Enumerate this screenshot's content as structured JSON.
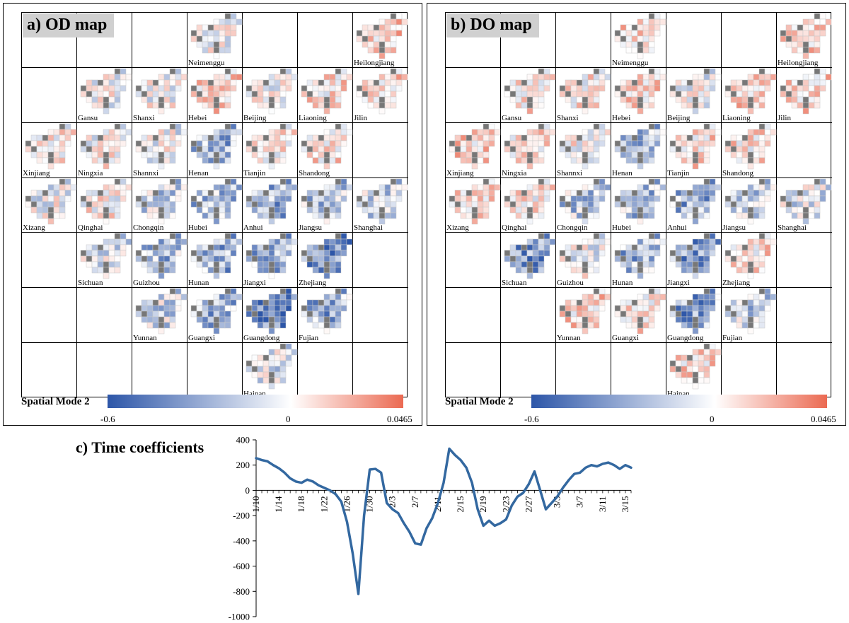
{
  "panels": [
    {
      "title": "a) OD map",
      "colorbar_label": "Spatial Mode 2"
    },
    {
      "title": "b) DO map",
      "colorbar_label": "Spatial Mode 2"
    }
  ],
  "colorbar": {
    "ticks": [
      "-0.6",
      "0",
      "0.0465"
    ],
    "min": -0.6,
    "max": 0.0465,
    "colors": {
      "negative": "#2d56a8",
      "zero": "#ffffff",
      "positive": "#eb6a52",
      "missing": "#777777"
    }
  },
  "provinces": [
    {
      "name": "Neimenggu",
      "row": 0,
      "col": 3,
      "od_bias": 0.1,
      "do_bias": 0.35
    },
    {
      "name": "Heilongjiang",
      "row": 0,
      "col": 6,
      "od_bias": 0.45,
      "do_bias": 0.45
    },
    {
      "name": "Gansu",
      "row": 1,
      "col": 1,
      "od_bias": 0.05,
      "do_bias": 0.25
    },
    {
      "name": "Shanxi",
      "row": 1,
      "col": 2,
      "od_bias": 0.05,
      "do_bias": 0.2
    },
    {
      "name": "Hebei",
      "row": 1,
      "col": 3,
      "od_bias": 0.35,
      "do_bias": 0.35
    },
    {
      "name": "Beijing",
      "row": 1,
      "col": 4,
      "od_bias": 0.1,
      "do_bias": 0.0
    },
    {
      "name": "Liaoning",
      "row": 1,
      "col": 5,
      "od_bias": 0.3,
      "do_bias": 0.4
    },
    {
      "name": "Jilin",
      "row": 1,
      "col": 6,
      "od_bias": 0.35,
      "do_bias": 0.35
    },
    {
      "name": "Xinjiang",
      "row": 2,
      "col": 0,
      "od_bias": 0.15,
      "do_bias": 0.4
    },
    {
      "name": "Ningxia",
      "row": 2,
      "col": 1,
      "od_bias": 0.1,
      "do_bias": 0.25
    },
    {
      "name": "Shannxi",
      "row": 2,
      "col": 2,
      "od_bias": 0.0,
      "do_bias": 0.15
    },
    {
      "name": "Henan",
      "row": 2,
      "col": 3,
      "od_bias": -0.35,
      "do_bias": -0.35
    },
    {
      "name": "Tianjin",
      "row": 2,
      "col": 4,
      "od_bias": 0.2,
      "do_bias": 0.3
    },
    {
      "name": "Shandong",
      "row": 2,
      "col": 5,
      "od_bias": 0.3,
      "do_bias": 0.3
    },
    {
      "name": "Xizang",
      "row": 3,
      "col": 0,
      "od_bias": 0.0,
      "do_bias": 0.35
    },
    {
      "name": "Qinghai",
      "row": 3,
      "col": 1,
      "od_bias": 0.15,
      "do_bias": 0.25
    },
    {
      "name": "Chongqin",
      "row": 3,
      "col": 2,
      "od_bias": -0.2,
      "do_bias": -0.25
    },
    {
      "name": "Hubei",
      "row": 3,
      "col": 3,
      "od_bias": -0.3,
      "do_bias": -0.3
    },
    {
      "name": "Anhui",
      "row": 3,
      "col": 4,
      "od_bias": -0.35,
      "do_bias": -0.4
    },
    {
      "name": "Jiangsu",
      "row": 3,
      "col": 5,
      "od_bias": -0.3,
      "do_bias": -0.2
    },
    {
      "name": "Shanghai",
      "row": 3,
      "col": 6,
      "od_bias": -0.2,
      "do_bias": -0.1
    },
    {
      "name": "Sichuan",
      "row": 4,
      "col": 1,
      "od_bias": -0.1,
      "do_bias": -0.45
    },
    {
      "name": "Guizhou",
      "row": 4,
      "col": 2,
      "od_bias": -0.3,
      "do_bias": 0.0
    },
    {
      "name": "Hunan",
      "row": 4,
      "col": 3,
      "od_bias": -0.4,
      "do_bias": -0.35
    },
    {
      "name": "Jiangxi",
      "row": 4,
      "col": 4,
      "od_bias": -0.4,
      "do_bias": -0.45
    },
    {
      "name": "Zhejiang",
      "row": 4,
      "col": 5,
      "od_bias": -0.55,
      "do_bias": 0.3
    },
    {
      "name": "Yunnan",
      "row": 5,
      "col": 2,
      "od_bias": -0.15,
      "do_bias": 0.35
    },
    {
      "name": "Guangxi",
      "row": 5,
      "col": 3,
      "od_bias": -0.35,
      "do_bias": 0.25
    },
    {
      "name": "Guangdong",
      "row": 5,
      "col": 4,
      "od_bias": -0.65,
      "do_bias": -0.45
    },
    {
      "name": "Fujian",
      "row": 5,
      "col": 5,
      "od_bias": -0.35,
      "do_bias": -0.2
    },
    {
      "name": "Hainan",
      "row": 6,
      "col": 4,
      "od_bias": -0.1,
      "do_bias": 0.35
    }
  ],
  "chart_data": {
    "type": "line",
    "title": "c) Time coefficients",
    "xlabel": "",
    "ylabel": "",
    "ylim": [
      -1000,
      400
    ],
    "yticks": [
      400,
      200,
      0,
      -200,
      -400,
      -600,
      -800,
      -1000
    ],
    "xtick_labels": [
      "1/10",
      "1/14",
      "1/18",
      "1/22",
      "1/26",
      "1/30",
      "2/3",
      "2/7",
      "2/11",
      "2/15",
      "2/19",
      "2/23",
      "2/27",
      "3/3",
      "3/7",
      "3/11",
      "3/15"
    ],
    "grid": false,
    "series": [
      {
        "color": "#3368a0",
        "x": [
          "1/10",
          "1/11",
          "1/12",
          "1/13",
          "1/14",
          "1/15",
          "1/16",
          "1/17",
          "1/18",
          "1/19",
          "1/20",
          "1/21",
          "1/22",
          "1/23",
          "1/24",
          "1/25",
          "1/26",
          "1/27",
          "1/28",
          "1/29",
          "1/30",
          "1/31",
          "2/1",
          "2/2",
          "2/3",
          "2/4",
          "2/5",
          "2/6",
          "2/7",
          "2/8",
          "2/9",
          "2/10",
          "2/11",
          "2/12",
          "2/13",
          "2/14",
          "2/15",
          "2/16",
          "2/17",
          "2/18",
          "2/19",
          "2/20",
          "2/21",
          "2/22",
          "2/23",
          "2/24",
          "2/25",
          "2/26",
          "2/27",
          "2/28",
          "2/29",
          "3/1",
          "3/2",
          "3/3",
          "3/4",
          "3/5",
          "3/6",
          "3/7",
          "3/8",
          "3/9",
          "3/10",
          "3/11",
          "3/12",
          "3/13",
          "3/14",
          "3/15",
          "3/16"
        ],
        "values": [
          255,
          240,
          230,
          200,
          175,
          140,
          95,
          70,
          60,
          85,
          70,
          40,
          20,
          0,
          -30,
          -90,
          -250,
          -500,
          -820,
          -200,
          165,
          170,
          140,
          -100,
          -150,
          -180,
          -260,
          -330,
          -420,
          -430,
          -300,
          -220,
          -100,
          60,
          330,
          280,
          240,
          180,
          60,
          -150,
          -280,
          -240,
          -280,
          -260,
          -230,
          -120,
          -50,
          -20,
          50,
          150,
          0,
          -150,
          -100,
          -50,
          20,
          80,
          130,
          140,
          180,
          200,
          190,
          210,
          220,
          200,
          170,
          200,
          180
        ]
      }
    ]
  }
}
